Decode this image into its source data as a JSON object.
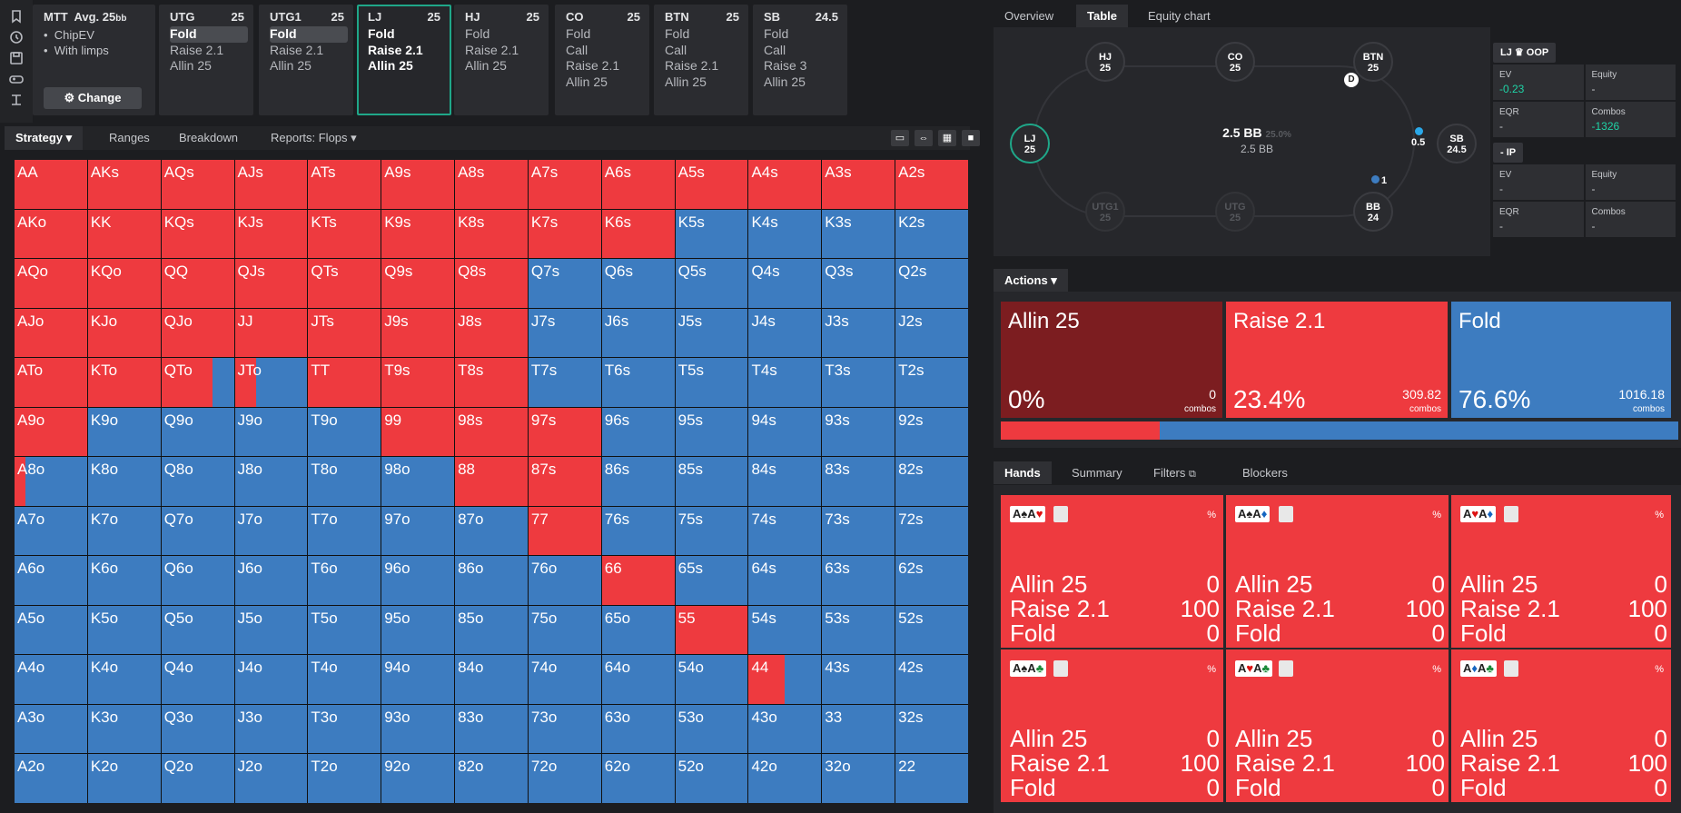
{
  "icons": [
    "bookmark-icon",
    "history-icon",
    "save-icon",
    "gamepad-icon",
    "text-cursor-icon"
  ],
  "tournament": {
    "title": "MTT",
    "avg": "Avg. 25",
    "avg_unit": "bb",
    "bullets": [
      "ChipEV",
      "With limps"
    ],
    "change_label": "Change"
  },
  "positions": [
    {
      "name": "UTG",
      "stack": "25",
      "actions": [
        {
          "label": "Fold",
          "hl": true
        },
        {
          "label": "Raise 2.1"
        },
        {
          "label": "Allin 25"
        }
      ]
    },
    {
      "name": "UTG1",
      "stack": "25",
      "actions": [
        {
          "label": "Fold",
          "hl": true
        },
        {
          "label": "Raise 2.1"
        },
        {
          "label": "Allin 25"
        }
      ]
    },
    {
      "name": "LJ",
      "stack": "25",
      "selected": true,
      "actions": [
        {
          "label": "Fold"
        },
        {
          "label": "Raise 2.1"
        },
        {
          "label": "Allin 25"
        }
      ]
    },
    {
      "name": "HJ",
      "stack": "25",
      "actions": [
        {
          "label": "Fold"
        },
        {
          "label": "Raise 2.1"
        },
        {
          "label": "Allin 25"
        }
      ]
    },
    {
      "name": "CO",
      "stack": "25",
      "actions": [
        {
          "label": "Fold"
        },
        {
          "label": "Call"
        },
        {
          "label": "Raise 2.1"
        },
        {
          "label": "Allin 25"
        }
      ]
    },
    {
      "name": "BTN",
      "stack": "25",
      "actions": [
        {
          "label": "Fold"
        },
        {
          "label": "Call"
        },
        {
          "label": "Raise 2.1"
        },
        {
          "label": "Allin 25"
        }
      ]
    },
    {
      "name": "SB",
      "stack": "24.5",
      "actions": [
        {
          "label": "Fold"
        },
        {
          "label": "Call"
        },
        {
          "label": "Raise 3"
        },
        {
          "label": "Allin 25"
        }
      ]
    }
  ],
  "strategy_tabs": {
    "strategy": "Strategy",
    "ranges": "Ranges",
    "breakdown": "Breakdown",
    "reports": "Reports: Flops"
  },
  "grid": {
    "rows": [
      [
        "AA",
        "AKs",
        "AQs",
        "AJs",
        "ATs",
        "A9s",
        "A8s",
        "A7s",
        "A6s",
        "A5s",
        "A4s",
        "A3s",
        "A2s"
      ],
      [
        "AKo",
        "KK",
        "KQs",
        "KJs",
        "KTs",
        "K9s",
        "K8s",
        "K7s",
        "K6s",
        "K5s",
        "K4s",
        "K3s",
        "K2s"
      ],
      [
        "AQo",
        "KQo",
        "QQ",
        "QJs",
        "QTs",
        "Q9s",
        "Q8s",
        "Q7s",
        "Q6s",
        "Q5s",
        "Q4s",
        "Q3s",
        "Q2s"
      ],
      [
        "AJo",
        "KJo",
        "QJo",
        "JJ",
        "JTs",
        "J9s",
        "J8s",
        "J7s",
        "J6s",
        "J5s",
        "J4s",
        "J3s",
        "J2s"
      ],
      [
        "ATo",
        "KTo",
        "QTo",
        "JTo",
        "TT",
        "T9s",
        "T8s",
        "T7s",
        "T6s",
        "T5s",
        "T4s",
        "T3s",
        "T2s"
      ],
      [
        "A9o",
        "K9o",
        "Q9o",
        "J9o",
        "T9o",
        "99",
        "98s",
        "97s",
        "96s",
        "95s",
        "94s",
        "93s",
        "92s"
      ],
      [
        "A8o",
        "K8o",
        "Q8o",
        "J8o",
        "T8o",
        "98o",
        "88",
        "87s",
        "86s",
        "85s",
        "84s",
        "83s",
        "82s"
      ],
      [
        "A7o",
        "K7o",
        "Q7o",
        "J7o",
        "T7o",
        "97o",
        "87o",
        "77",
        "76s",
        "75s",
        "74s",
        "73s",
        "72s"
      ],
      [
        "A6o",
        "K6o",
        "Q6o",
        "J6o",
        "T6o",
        "96o",
        "86o",
        "76o",
        "66",
        "65s",
        "64s",
        "63s",
        "62s"
      ],
      [
        "A5o",
        "K5o",
        "Q5o",
        "J5o",
        "T5o",
        "95o",
        "85o",
        "75o",
        "65o",
        "55",
        "54s",
        "53s",
        "52s"
      ],
      [
        "A4o",
        "K4o",
        "Q4o",
        "J4o",
        "T4o",
        "94o",
        "84o",
        "74o",
        "64o",
        "54o",
        "44",
        "43s",
        "42s"
      ],
      [
        "A3o",
        "K3o",
        "Q3o",
        "J3o",
        "T3o",
        "93o",
        "83o",
        "73o",
        "63o",
        "53o",
        "43o",
        "33",
        "32s"
      ],
      [
        "A2o",
        "K2o",
        "Q2o",
        "J2o",
        "T2o",
        "92o",
        "82o",
        "72o",
        "62o",
        "52o",
        "42o",
        "32o",
        "22"
      ]
    ],
    "raise_fraction": [
      [
        1,
        1,
        1,
        1,
        1,
        1,
        1,
        1,
        1,
        1,
        1,
        1,
        1
      ],
      [
        1,
        1,
        1,
        1,
        1,
        1,
        1,
        1,
        1,
        0,
        0,
        0,
        0
      ],
      [
        1,
        1,
        1,
        1,
        1,
        1,
        1,
        0,
        0,
        0,
        0,
        0,
        0
      ],
      [
        1,
        1,
        1,
        1,
        1,
        1,
        1,
        0,
        0,
        0,
        0,
        0,
        0
      ],
      [
        1,
        1,
        0.7,
        0.3,
        1,
        1,
        1,
        0,
        0,
        0,
        0,
        0,
        0
      ],
      [
        1,
        0,
        0,
        0,
        0,
        1,
        1,
        1,
        0,
        0,
        0,
        0,
        0
      ],
      [
        0.15,
        0,
        0,
        0,
        0,
        0,
        1,
        1,
        0,
        0,
        0,
        0,
        0
      ],
      [
        0,
        0,
        0,
        0,
        0,
        0,
        0,
        1,
        0,
        0,
        0,
        0,
        0
      ],
      [
        0,
        0,
        0,
        0,
        0,
        0,
        0,
        0,
        1,
        0,
        0,
        0,
        0
      ],
      [
        0,
        0,
        0,
        0,
        0,
        0,
        0,
        0,
        0,
        1,
        0,
        0,
        0
      ],
      [
        0,
        0,
        0,
        0,
        0,
        0,
        0,
        0,
        0,
        0,
        0.5,
        0,
        0
      ],
      [
        0,
        0,
        0,
        0,
        0,
        0,
        0,
        0,
        0,
        0,
        0,
        0,
        0
      ],
      [
        0,
        0,
        0,
        0,
        0,
        0,
        0,
        0,
        0,
        0,
        0,
        0,
        0
      ]
    ]
  },
  "right_tabs": {
    "overview": "Overview",
    "table": "Table",
    "equity": "Equity chart"
  },
  "table": {
    "seats": [
      {
        "name": "HJ",
        "stack": "25"
      },
      {
        "name": "CO",
        "stack": "25"
      },
      {
        "name": "BTN",
        "stack": "25"
      },
      {
        "name": "LJ",
        "stack": "25"
      },
      {
        "name": "SB",
        "stack": "24.5"
      },
      {
        "name": "UTG1",
        "stack": "25"
      },
      {
        "name": "UTG",
        "stack": "25"
      },
      {
        "name": "BB",
        "stack": "24"
      }
    ],
    "pot": "2.5 BB",
    "pot_pct": "25.0%",
    "pot_sub": "2.5 BB",
    "dealer": "D",
    "sb_bet": "0.5",
    "bb_bet": "1"
  },
  "oop": {
    "title": "LJ ♛ OOP",
    "ev_label": "EV",
    "ev": "-0.23",
    "equity_label": "Equity",
    "equity": "-",
    "eqr_label": "EQR",
    "eqr": "-",
    "combos_label": "Combos",
    "combos": "-1326"
  },
  "ip": {
    "title": "- IP",
    "ev_label": "EV",
    "ev": "-",
    "equity_label": "Equity",
    "equity": "-",
    "eqr_label": "EQR",
    "eqr": "-",
    "combos_label": "Combos",
    "combos": "-"
  },
  "actions": {
    "tab": "Actions",
    "items": [
      {
        "name": "Allin 25",
        "pct": "0%",
        "combos": "0",
        "combos_label": "combos",
        "color": "#7c1d20"
      },
      {
        "name": "Raise 2.1",
        "pct": "23.4%",
        "combos": "309.82",
        "combos_label": "combos",
        "color": "#ee3a3f"
      },
      {
        "name": "Fold",
        "pct": "76.6%",
        "combos": "1016.18",
        "combos_label": "combos",
        "color": "#3d7cc0"
      }
    ],
    "raise_share": 0.234
  },
  "hands_tabs": {
    "hands": "Hands",
    "summary": "Summary",
    "filters": "Filters",
    "blockers": "Blockers"
  },
  "hands": [
    {
      "c1": "A",
      "s1": "♠",
      "k1": "#222",
      "c2": "A",
      "s2": "♥",
      "k2": "#d11",
      "pct": "%",
      "rows": [
        [
          "Allin 25",
          "0"
        ],
        [
          "Raise 2.1",
          "100"
        ],
        [
          "Fold",
          "0"
        ]
      ]
    },
    {
      "c1": "A",
      "s1": "♠",
      "k1": "#222",
      "c2": "A",
      "s2": "♦",
      "k2": "#1565c0",
      "pct": "%",
      "rows": [
        [
          "Allin 25",
          "0"
        ],
        [
          "Raise 2.1",
          "100"
        ],
        [
          "Fold",
          "0"
        ]
      ]
    },
    {
      "c1": "A",
      "s1": "♥",
      "k1": "#d11",
      "c2": "A",
      "s2": "♦",
      "k2": "#1565c0",
      "pct": "%",
      "rows": [
        [
          "Allin 25",
          "0"
        ],
        [
          "Raise 2.1",
          "100"
        ],
        [
          "Fold",
          "0"
        ]
      ]
    },
    {
      "c1": "A",
      "s1": "♠",
      "k1": "#222",
      "c2": "A",
      "s2": "♣",
      "k2": "#1b8a3a",
      "pct": "%",
      "rows": [
        [
          "Allin 25",
          "0"
        ],
        [
          "Raise 2.1",
          "100"
        ],
        [
          "Fold",
          "0"
        ]
      ]
    },
    {
      "c1": "A",
      "s1": "♥",
      "k1": "#d11",
      "c2": "A",
      "s2": "♣",
      "k2": "#1b8a3a",
      "pct": "%",
      "rows": [
        [
          "Allin 25",
          "0"
        ],
        [
          "Raise 2.1",
          "100"
        ],
        [
          "Fold",
          "0"
        ]
      ]
    },
    {
      "c1": "A",
      "s1": "♦",
      "k1": "#1565c0",
      "c2": "A",
      "s2": "♣",
      "k2": "#1b8a3a",
      "pct": "%",
      "rows": [
        [
          "Allin 25",
          "0"
        ],
        [
          "Raise 2.1",
          "100"
        ],
        [
          "Fold",
          "0"
        ]
      ]
    }
  ]
}
